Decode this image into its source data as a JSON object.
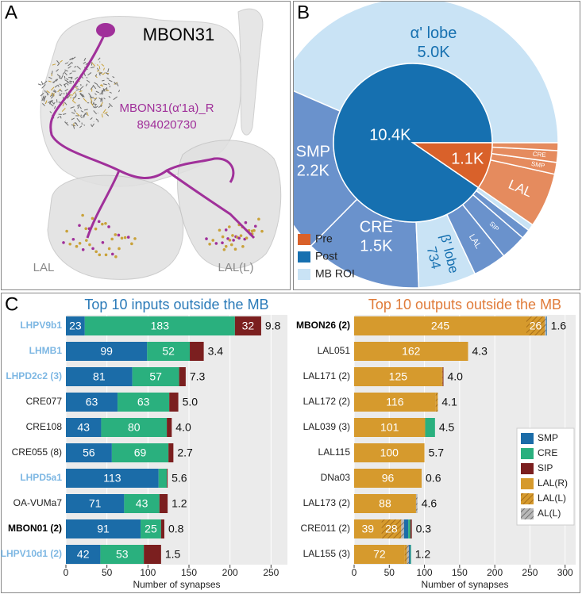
{
  "panel_labels": [
    "A",
    "B",
    "C"
  ],
  "panel_a": {
    "title": "MBON31",
    "neuron_label": "MBON31(α'1a)_R",
    "body_id": "894020730",
    "roi_labels": [
      "LAL",
      "LAL(L)"
    ]
  },
  "chart_data": [
    {
      "type": "sunburst",
      "inner": {
        "categories": [
          "Post",
          "Pre"
        ],
        "values": [
          10400,
          1100
        ],
        "value_labels": [
          "10.4K",
          "1.1K"
        ],
        "colors": [
          "#1670b0",
          "#d9612a"
        ]
      },
      "outer": {
        "categories": [
          "α' lobe",
          "SMP",
          "CRE",
          "β' lobe",
          "LAL",
          "SIP",
          null,
          null,
          "LAL",
          "SMP",
          "CRE",
          null
        ],
        "values": [
          5000,
          2200,
          1500,
          734,
          430,
          330,
          120,
          86,
          700,
          150,
          150,
          100
        ],
        "value_labels": [
          "5.0K",
          "2.2K",
          "1.5K",
          "734",
          null,
          null,
          null,
          null,
          null,
          null,
          null,
          null
        ],
        "colors": [
          "#c9e3f5",
          "#6a92cc",
          "#6a92cc",
          "#c9e3f5",
          "#6a92cc",
          "#6a92cc",
          "#6a92cc",
          "#c9e3f5",
          "#e58b5e",
          "#e58b5e",
          "#e58b5e",
          "#e58b5e"
        ]
      },
      "roi_legend": {
        "name": "MB ROI",
        "color": "#c9e3f5"
      }
    },
    {
      "type": "stacked-barh",
      "title": "Top 10 inputs outside the MB",
      "title_color": "#2a7ab8",
      "xlabel": "Number of synapses",
      "xlim": [
        0,
        270
      ],
      "xticks": [
        0,
        50,
        100,
        150,
        200,
        250
      ],
      "grid": true,
      "categories": [
        "LHPV9b1",
        "LHMB1",
        "LHPD2c2 (3)",
        "CRE077",
        "CRE108",
        "CRE055 (8)",
        "LHPD5a1",
        "OA-VUMa7",
        "MBON01 (2)",
        "LHPV10d1 (2)"
      ],
      "category_colors": [
        "#7db7e3",
        "#7db7e3",
        "#7db7e3",
        "#222222",
        "#222222",
        "#222222",
        "#7db7e3",
        "#222222",
        "#000000",
        "#7db7e3"
      ],
      "category_bold": [
        true,
        true,
        true,
        false,
        false,
        false,
        true,
        false,
        true,
        true
      ],
      "series": [
        {
          "name": "SMP",
          "color": "#1b6ca8",
          "values": [
            23,
            99,
            81,
            63,
            43,
            56,
            113,
            71,
            91,
            42
          ],
          "value_labels": [
            "23",
            "99",
            "81",
            "63",
            "43",
            "56",
            "113",
            "71",
            "91",
            "42"
          ]
        },
        {
          "name": "CRE",
          "color": "#2ab07e",
          "values": [
            183,
            52,
            57,
            63,
            80,
            69,
            10,
            43,
            25,
            53
          ],
          "value_labels": [
            "183",
            "52",
            "57",
            "63",
            "80",
            "69",
            null,
            "43",
            "25",
            "53"
          ]
        },
        {
          "name": "SIP",
          "color": "#7b1f1f",
          "values": [
            32,
            17,
            8,
            11,
            6,
            6,
            1,
            10,
            4,
            21
          ],
          "value_labels": [
            "32",
            null,
            null,
            null,
            null,
            null,
            null,
            null,
            null,
            null
          ]
        }
      ],
      "side_labels": [
        "9.8",
        "3.4",
        "7.3",
        "5.0",
        "4.0",
        "2.7",
        "5.6",
        "1.2",
        "0.8",
        "1.5"
      ],
      "legend": false
    },
    {
      "type": "stacked-barh",
      "title": "Top 10 outputs outside the MB",
      "title_color": "#e07b39",
      "xlabel": "Number of synapses",
      "xlim": [
        0,
        315
      ],
      "xticks": [
        0,
        50,
        100,
        150,
        200,
        250,
        300
      ],
      "grid": true,
      "categories": [
        "MBON26 (2)",
        "LAL051",
        "LAL171 (2)",
        "LAL172 (2)",
        "LAL039 (3)",
        "LAL115",
        "DNa03",
        "LAL173 (2)",
        "CRE011 (2)",
        "LAL155 (3)"
      ],
      "category_colors": [
        "#000000",
        "#222222",
        "#222222",
        "#222222",
        "#222222",
        "#222222",
        "#222222",
        "#222222",
        "#222222",
        "#222222"
      ],
      "category_bold": [
        true,
        false,
        false,
        false,
        false,
        false,
        false,
        false,
        false,
        false
      ],
      "series": [
        {
          "name": "SMP",
          "color": "#1b6ca8",
          "values": [
            1,
            0,
            0,
            0,
            0,
            0,
            0,
            0,
            6,
            2
          ]
        },
        {
          "name": "CRE",
          "color": "#2ab07e",
          "values": [
            0,
            0,
            0,
            0,
            14,
            0,
            0,
            0,
            3,
            1
          ]
        },
        {
          "name": "SIP",
          "color": "#7b1f1f",
          "values": [
            0,
            0,
            1,
            0,
            0,
            0,
            0,
            0,
            2,
            0
          ]
        },
        {
          "name": "LAL(R)",
          "color": "#d69a2d",
          "values": [
            245,
            162,
            125,
            116,
            101,
            100,
            96,
            88,
            39,
            72
          ],
          "value_labels": [
            "245",
            "162",
            "125",
            "116",
            "101",
            "100",
            "96",
            "88",
            "39",
            "72"
          ]
        },
        {
          "name": "LAL(L)",
          "color": "#d69a2d",
          "hatch": "#a86f1a",
          "values": [
            26,
            0,
            1,
            3,
            0,
            0,
            0,
            0,
            28,
            3
          ],
          "value_labels": [
            "26",
            null,
            null,
            null,
            null,
            null,
            null,
            null,
            "28",
            null
          ]
        },
        {
          "name": "AL(L)",
          "color": "#b8b8b8",
          "hatch": "#707070",
          "values": [
            2,
            0,
            0,
            0,
            0,
            0,
            0,
            2,
            4,
            3
          ]
        }
      ],
      "stack_order": [
        3,
        4,
        5,
        0,
        1,
        2
      ],
      "side_labels": [
        "1.6",
        "4.3",
        "4.0",
        "4.1",
        "4.5",
        "5.7",
        "0.6",
        "4.6",
        "0.3",
        "1.2"
      ],
      "legend": true,
      "legend_position": "lower right"
    }
  ]
}
